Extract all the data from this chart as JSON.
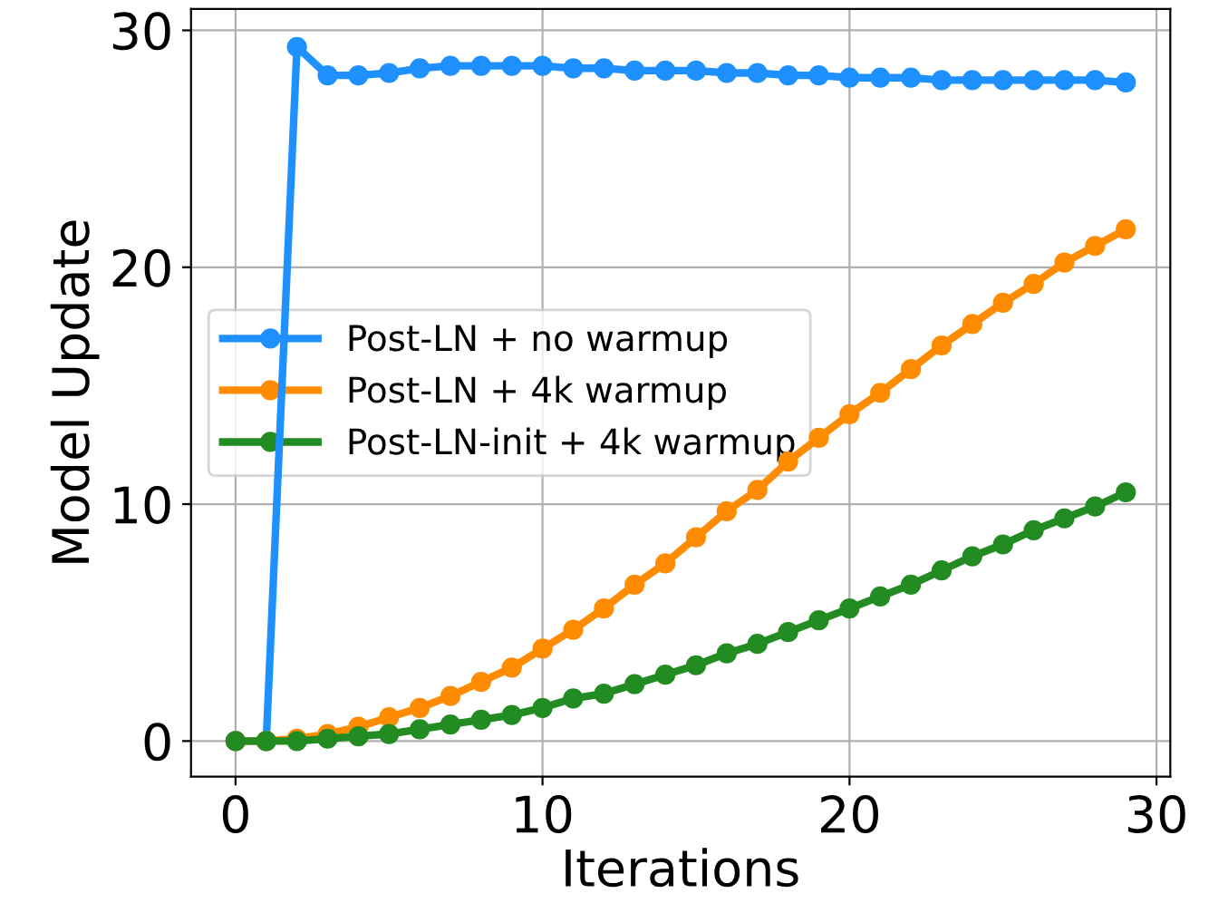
{
  "chart_data": {
    "type": "line",
    "xlabel": "Iterations",
    "ylabel": "Model Update",
    "x": [
      0,
      1,
      2,
      3,
      4,
      5,
      6,
      7,
      8,
      9,
      10,
      11,
      12,
      13,
      14,
      15,
      16,
      17,
      18,
      19,
      20,
      21,
      22,
      23,
      24,
      25,
      26,
      27,
      28,
      29
    ],
    "series": [
      {
        "name": "Post-LN + no warmup",
        "color": "#1e90ff",
        "values": [
          0,
          0,
          29.3,
          28.1,
          28.1,
          28.2,
          28.4,
          28.5,
          28.5,
          28.5,
          28.5,
          28.4,
          28.4,
          28.3,
          28.3,
          28.3,
          28.2,
          28.2,
          28.1,
          28.1,
          28.0,
          28.0,
          28.0,
          27.9,
          27.9,
          27.9,
          27.9,
          27.9,
          27.9,
          27.8
        ]
      },
      {
        "name": "Post-LN + 4k warmup",
        "color": "#ff8c00",
        "values": [
          0,
          0,
          0.1,
          0.3,
          0.6,
          1.0,
          1.4,
          1.9,
          2.5,
          3.1,
          3.9,
          4.7,
          5.6,
          6.6,
          7.5,
          8.6,
          9.7,
          10.6,
          11.8,
          12.8,
          13.8,
          14.7,
          15.7,
          16.7,
          17.6,
          18.5,
          19.3,
          20.2,
          20.9,
          21.6
        ]
      },
      {
        "name": "Post-LN-init + 4k warmup",
        "color": "#228b22",
        "values": [
          0,
          0,
          0,
          0.1,
          0.2,
          0.3,
          0.5,
          0.7,
          0.9,
          1.1,
          1.4,
          1.8,
          2.0,
          2.4,
          2.8,
          3.2,
          3.7,
          4.1,
          4.6,
          5.1,
          5.6,
          6.1,
          6.6,
          7.2,
          7.8,
          8.3,
          8.9,
          9.4,
          9.9,
          10.5
        ]
      }
    ],
    "xlim": [
      -1.45,
      30.45
    ],
    "ylim": [
      -1.5,
      30.9
    ],
    "xticks": [
      0,
      10,
      20,
      30
    ],
    "yticks": [
      0,
      10,
      20,
      30
    ],
    "grid": true,
    "legend": "center left",
    "marker": "circle",
    "line_style": "solid"
  }
}
